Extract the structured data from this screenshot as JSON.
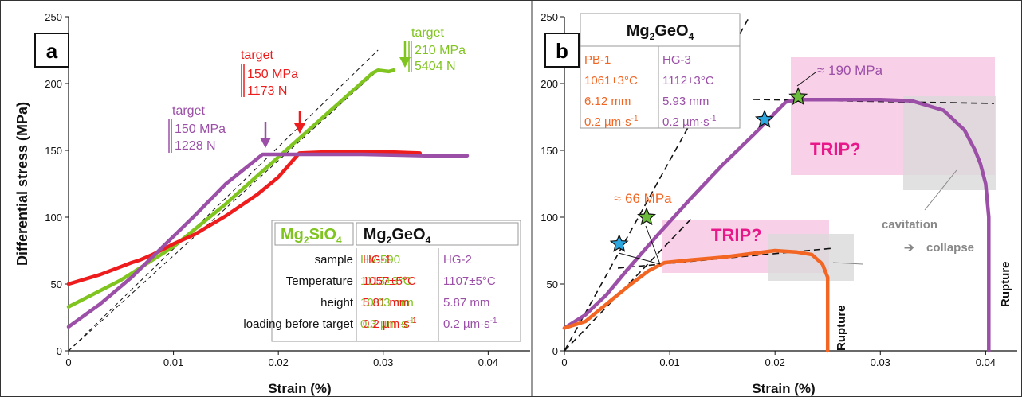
{
  "colors": {
    "green": "#7fc41f",
    "red": "#ee1c1c",
    "purple": "#9b4fa7",
    "orange": "#f26522",
    "pink": "#f7c8e3",
    "grey": "#d9d9d9",
    "blue": "#2ca7e0",
    "star_green": "#6cbd3c"
  },
  "panel_a": {
    "letter": "a",
    "y_axis_label": "Differential stress (MPa)",
    "x_axis_label": "Strain (%)",
    "x_ticks": [
      "0",
      "0.01",
      "0.02",
      "0.03",
      "0.04"
    ],
    "y_ticks": [
      "0",
      "50",
      "100",
      "150",
      "200",
      "250"
    ],
    "annotations": {
      "green": {
        "l1": "target",
        "l2": "210 MPa",
        "l3": "5404 N"
      },
      "red": {
        "l1": "target",
        "l2": "150 MPa",
        "l3": "1173 N"
      },
      "purple": {
        "l1": "target",
        "l2": "150 MPa",
        "l3": "1228 N"
      }
    },
    "table": {
      "head_green": {
        "a": "Mg",
        "sub": "2",
        "b": "SiO",
        "sub2": "4"
      },
      "head_black": {
        "a": "Mg",
        "sub": "2",
        "b": "GeO",
        "sub2": "4"
      },
      "rows": [
        {
          "label": "sample",
          "c1": "HV-590",
          "c2": "HG-1",
          "c3": "HG-2"
        },
        {
          "label": "Temperature",
          "c1": "1113±3°C",
          "c2": "1057±5°C",
          "c3": "1107±5°C"
        },
        {
          "label": "height",
          "c1": "10.03 mm",
          "c2": "5.81 mm",
          "c3": "5.87 mm"
        },
        {
          "label": "loading before target",
          "c1": "0.3 µm·s",
          "c2": "0.2 µm·s",
          "c3": "0.2 µm·s"
        }
      ],
      "exp": "-1"
    }
  },
  "panel_b": {
    "letter": "b",
    "x_axis_label": "Strain (%)",
    "x_ticks": [
      "0",
      "0.01",
      "0.02",
      "0.03",
      "0.04"
    ],
    "y_ticks": [
      "0",
      "50",
      "100",
      "150",
      "200",
      "250"
    ],
    "table": {
      "head": {
        "a": "Mg",
        "sub": "2",
        "b": "GeO",
        "sub2": "4"
      },
      "col1": [
        "PB-1",
        "1061±3°C",
        "6.12 mm",
        "0.2 µm·s"
      ],
      "col2": [
        "HG-3",
        "1112±3°C",
        "5.93 mm",
        "0.2 µm·s"
      ],
      "exp": "-1"
    },
    "labels": {
      "mpa190": "≈ 190 MPa",
      "mpa66": "≈ 66 MPa",
      "trip1": "TRIP?",
      "trip2": "TRIP?",
      "cavitation": "cavitation",
      "collapse": "collapse",
      "arrow": "➔",
      "rupture1": "Rupture",
      "rupture2": "Rupture"
    }
  },
  "chart_data": [
    {
      "type": "line",
      "panel": "a",
      "xlabel": "Strain (%)",
      "ylabel": "Differential stress (MPa)",
      "xlim": [
        0,
        0.044
      ],
      "ylim": [
        0,
        250
      ],
      "series": [
        {
          "name": "HV-590",
          "color": "#7fc41f",
          "x": [
            0,
            0.005,
            0.01,
            0.015,
            0.02,
            0.025,
            0.029,
            0.0295,
            0.0305,
            0.031
          ],
          "y": [
            33,
            53,
            78,
            110,
            145,
            180,
            208,
            210,
            209,
            210
          ]
        },
        {
          "name": "HG-1",
          "color": "#ee1c1c",
          "x": [
            0,
            0.003,
            0.006,
            0.0068,
            0.008,
            0.01,
            0.012,
            0.015,
            0.018,
            0.02,
            0.022,
            0.025,
            0.03,
            0.0335
          ],
          "y": [
            50,
            57,
            66,
            68,
            72,
            80,
            87,
            101,
            117,
            130,
            148,
            149,
            149,
            148
          ]
        },
        {
          "name": "HG-2",
          "color": "#9b4fa7",
          "x": [
            0,
            0.003,
            0.006,
            0.009,
            0.012,
            0.015,
            0.0185,
            0.022,
            0.028,
            0.034,
            0.038
          ],
          "y": [
            18,
            35,
            55,
            78,
            101,
            125,
            147,
            147,
            147,
            146,
            146
          ]
        }
      ],
      "reference_lines": [
        {
          "x": [
            0,
            0.0295
          ],
          "y": [
            0,
            210
          ]
        },
        {
          "x": [
            0,
            0.0295
          ],
          "y": [
            0,
            225
          ]
        }
      ]
    },
    {
      "type": "line",
      "panel": "b",
      "xlabel": "Strain (%)",
      "ylabel": "",
      "xlim": [
        0,
        0.043
      ],
      "ylim": [
        0,
        250
      ],
      "series": [
        {
          "name": "HG-3",
          "color": "#9b4fa7",
          "x": [
            0,
            0.002,
            0.004,
            0.006,
            0.009,
            0.012,
            0.015,
            0.018,
            0.02,
            0.021,
            0.022,
            0.025,
            0.03,
            0.033,
            0.036,
            0.038,
            0.039,
            0.0395,
            0.04,
            0.0403,
            0.0403
          ],
          "y": [
            17,
            27,
            42,
            61,
            88,
            114,
            139,
            162,
            178,
            186,
            188,
            188,
            188,
            187,
            180,
            165,
            150,
            140,
            125,
            100,
            0
          ]
        },
        {
          "name": "PB-1",
          "color": "#f26522",
          "x": [
            0,
            0.002,
            0.004,
            0.006,
            0.008,
            0.0095,
            0.012,
            0.015,
            0.018,
            0.02,
            0.022,
            0.0235,
            0.0245,
            0.025,
            0.025
          ],
          "y": [
            17,
            22,
            35,
            48,
            60,
            66,
            68,
            70,
            73,
            75,
            74,
            72,
            65,
            55,
            0
          ]
        }
      ],
      "markers": [
        {
          "type": "star",
          "color": "#2ca7e0",
          "x": 0.0052,
          "y": 80
        },
        {
          "type": "star",
          "color": "#6cbd3c",
          "x": 0.0078,
          "y": 100
        },
        {
          "type": "star",
          "color": "#2ca7e0",
          "x": 0.019,
          "y": 173
        },
        {
          "type": "star",
          "color": "#6cbd3c",
          "x": 0.0222,
          "y": 190
        }
      ]
    }
  ]
}
